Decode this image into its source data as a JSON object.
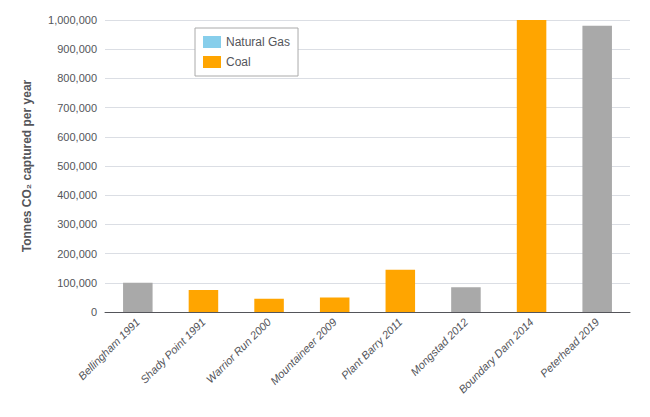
{
  "chart_data": {
    "type": "bar",
    "ylabel": "Tonnes CO₂ captured per year",
    "categories": [
      "Bellingham 1991",
      "Shady Point 1991",
      "Warrior Run 2000",
      "Mountaineer 2009",
      "Plant Barry 2011",
      "Mongstad 2012",
      "Boundary Dam 2014",
      "Peterhead 2019"
    ],
    "values": [
      100000,
      75000,
      45000,
      50000,
      145000,
      85000,
      1000000,
      980000
    ],
    "colors": [
      "#a9a9a9",
      "#FFA500",
      "#FFA500",
      "#FFA500",
      "#FFA500",
      "#a9a9a9",
      "#FFA500",
      "#a9a9a9"
    ],
    "legend_labels": [
      "Natural Gas",
      "Coal"
    ],
    "legend_colors": [
      "#87CEEB",
      "#FFA500"
    ],
    "legend": "upper left",
    "ylim": [
      0,
      1000000
    ],
    "yticks": [
      0,
      {
        "value": 100000,
        "label": "100,000"
      },
      {
        "value": 200000,
        "label": "200,000"
      },
      {
        "value": 300000,
        "label": "300,000"
      },
      {
        "value": 400000,
        "label": "400,000"
      },
      {
        "value": 500000,
        "label": "500,000"
      },
      {
        "value": 600000,
        "label": "600,000"
      },
      {
        "value": 700000,
        "label": "700,000"
      },
      {
        "value": 800000,
        "label": "800,000"
      },
      {
        "value": 900000,
        "label": "900,000"
      },
      {
        "value": 1000000,
        "label": "1,000,000"
      }
    ],
    "grid": true
  }
}
